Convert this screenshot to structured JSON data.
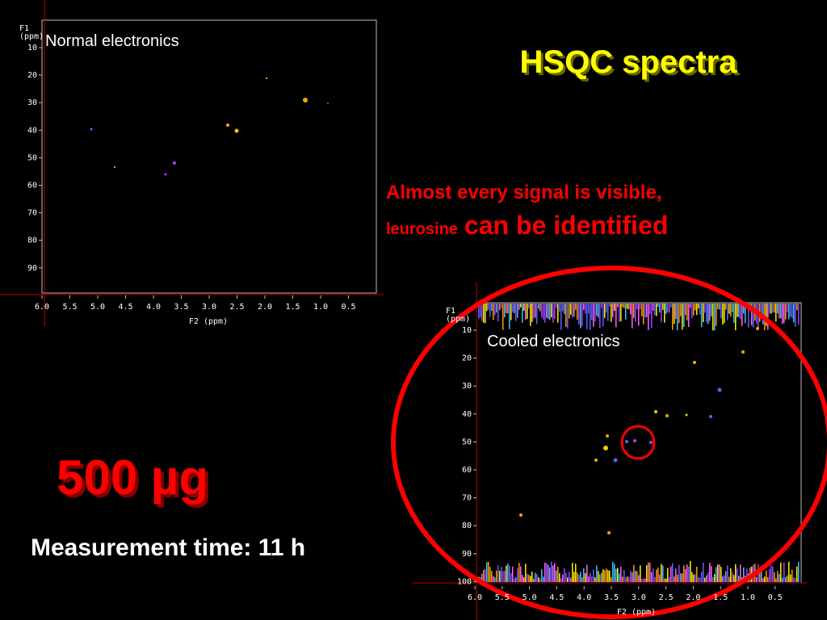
{
  "title": "HSQC spectra",
  "note": {
    "line1": "Almost every signal is visible,",
    "line2_small": "leurosine",
    "line2_large": "can be identified"
  },
  "amount": "500 µg",
  "measurement": "Measurement time: 11 h",
  "spectra": [
    {
      "label": "Normal electronics",
      "y_axis_label": [
        "F1",
        "(ppm)"
      ],
      "x_axis_label": "F2 (ppm)",
      "yticks": [
        "10",
        "20",
        "30",
        "40",
        "50",
        "60",
        "70",
        "80",
        "90"
      ],
      "xticks": [
        "6.0",
        "5.5",
        "5.0",
        "4.5",
        "4.0",
        "3.5",
        "3.0",
        "2.5",
        "2.0",
        "1.5",
        "1.0",
        "0.5"
      ]
    },
    {
      "label": "Cooled electronics",
      "y_axis_label": [
        "F1",
        "(ppm)"
      ],
      "x_axis_label": "F2 (ppm)",
      "yticks": [
        "10",
        "20",
        "30",
        "40",
        "50",
        "60",
        "70",
        "80",
        "90",
        "100"
      ],
      "xticks": [
        "6.0",
        "5.5",
        "5.0",
        "4.5",
        "4.0",
        "3.5",
        "3.0",
        "2.5",
        "2.0",
        "1.5",
        "1.0",
        "0.5"
      ]
    }
  ]
}
